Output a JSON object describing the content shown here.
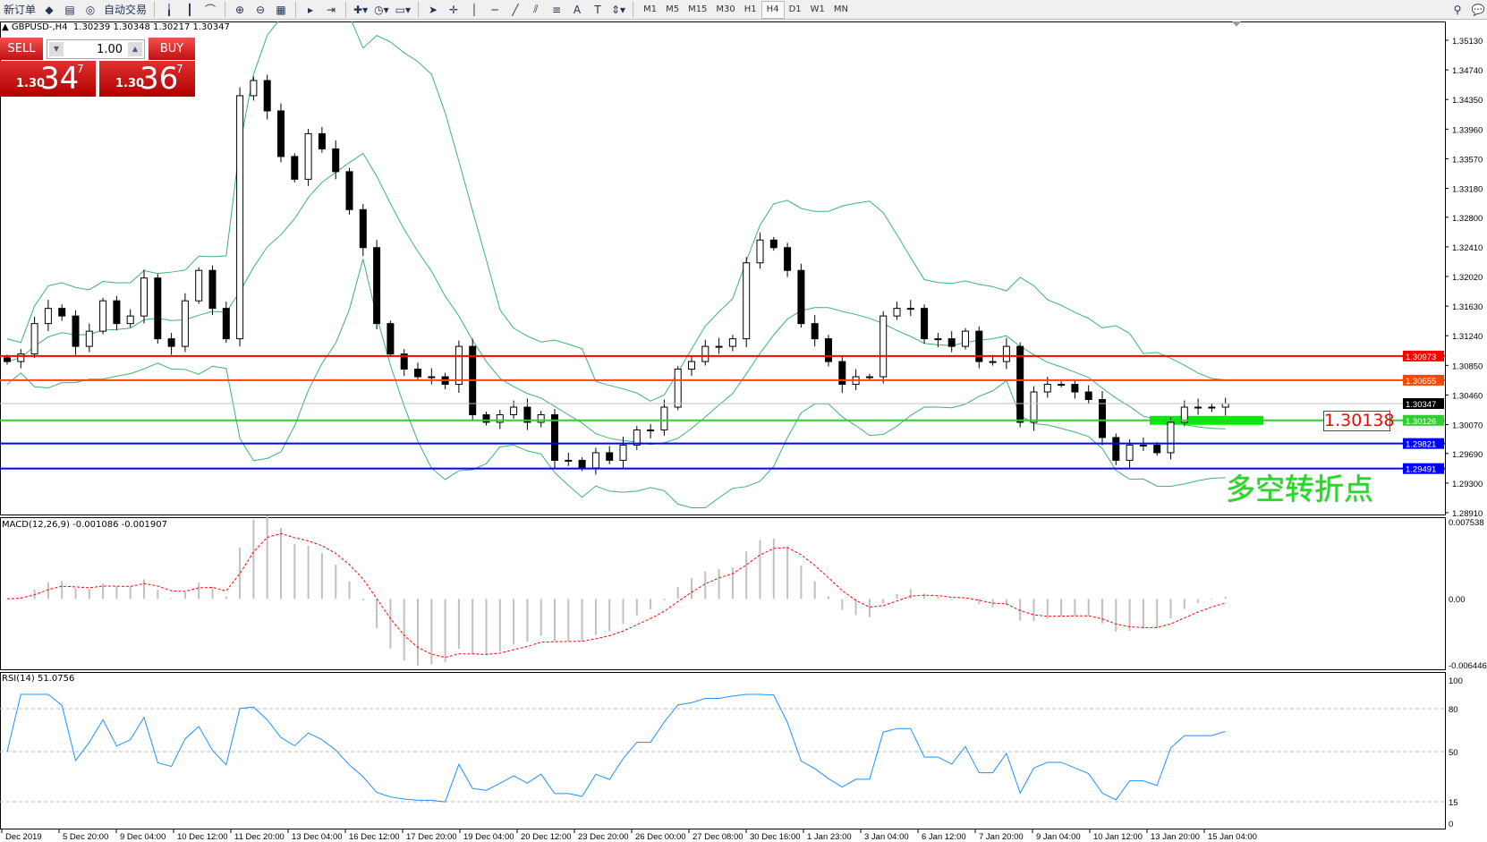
{
  "toolbar": {
    "new_order": "新订单",
    "auto_trade": "自动交易",
    "timeframes": [
      "M1",
      "M5",
      "M15",
      "M30",
      "H1",
      "H4",
      "D1",
      "W1",
      "MN"
    ],
    "selected_timeframe": "H4"
  },
  "header": {
    "symbol": "GBPUSD-,H4",
    "ohlc": "1.30239 1.30348 1.30217 1.30347"
  },
  "trade": {
    "sell_label": "SELL",
    "buy_label": "BUY",
    "lot": "1.00",
    "sell_small": "1.30",
    "sell_large": "34",
    "sell_pip": "7",
    "buy_small": "1.30",
    "buy_large": "36",
    "buy_pip": "7"
  },
  "annotation": {
    "price_label": "1.30138",
    "text": "多空转折点",
    "box_color": "#00ee00"
  },
  "indicators": {
    "macd_label": "MACD(12,26,9) -0.001086 -0.001907",
    "rsi_label": "RSI(14) 51.0756"
  },
  "chart_data": {
    "type": "candlestick",
    "price_axis": [
      "1.35130",
      "1.34740",
      "1.34350",
      "1.33960",
      "1.33570",
      "1.33180",
      "1.32800",
      "1.32410",
      "1.32020",
      "1.31630",
      "1.31240",
      "1.30850",
      "1.30460",
      "1.30070",
      "1.29690",
      "1.29300",
      "1.28910"
    ],
    "price_range": [
      1.2891,
      1.3513
    ],
    "time_axis": [
      "Dec 2019",
      "5 Dec 20:00",
      "9 Dec 04:00",
      "10 Dec 12:00",
      "11 Dec 20:00",
      "13 Dec 04:00",
      "16 Dec 12:00",
      "17 Dec 20:00",
      "19 Dec 04:00",
      "20 Dec 12:00",
      "23 Dec 20:00",
      "26 Dec 00:00",
      "27 Dec 08:00",
      "30 Dec 16:00",
      "1 Jan 23:00",
      "3 Jan 04:00",
      "6 Jan 12:00",
      "7 Jan 20:00",
      "9 Jan 04:00",
      "10 Jan 12:00",
      "13 Jan 20:00",
      "15 Jan 04:00"
    ],
    "closes": [
      1.309,
      1.31,
      1.314,
      1.316,
      1.315,
      1.311,
      1.313,
      1.317,
      1.314,
      1.315,
      1.32,
      1.312,
      1.311,
      1.317,
      1.321,
      1.316,
      1.312,
      1.344,
      1.346,
      1.342,
      1.336,
      1.333,
      1.339,
      1.337,
      1.334,
      1.329,
      1.324,
      1.314,
      1.31,
      1.308,
      1.307,
      1.307,
      1.306,
      1.311,
      1.302,
      1.301,
      1.302,
      1.303,
      1.301,
      1.302,
      1.296,
      1.296,
      1.295,
      1.297,
      1.296,
      1.298,
      1.3,
      1.3,
      1.303,
      1.308,
      1.309,
      1.311,
      1.311,
      1.312,
      1.322,
      1.325,
      1.324,
      1.321,
      1.314,
      1.312,
      1.309,
      1.306,
      1.307,
      1.307,
      1.315,
      1.316,
      1.316,
      1.312,
      1.312,
      1.311,
      1.313,
      1.309,
      1.309,
      1.311,
      1.301,
      1.305,
      1.306,
      1.306,
      1.305,
      1.304,
      1.299,
      1.296,
      1.298,
      1.298,
      1.297,
      1.301,
      1.303,
      1.303,
      1.303,
      1.30347
    ],
    "hlines": [
      {
        "price": "1.30973",
        "color": "#ff0000"
      },
      {
        "price": "1.30655",
        "color": "#ff4500"
      },
      {
        "price": "1.30347",
        "color": "#c0c0c0"
      },
      {
        "price": "1.30126",
        "color": "#32cd32"
      },
      {
        "price": "1.29821",
        "color": "#0000ff"
      },
      {
        "price": "1.29491",
        "color": "#0000ff"
      }
    ],
    "bands_color": "#3cb371",
    "macd": {
      "axis": [
        "0.007538",
        "0.00",
        "-0.006446"
      ],
      "histogram_color": "#c0c0c0",
      "signal_color": "#ff0000"
    },
    "rsi": {
      "axis": [
        "100",
        "80",
        "50",
        "15",
        "0"
      ],
      "color": "#1e90ff"
    }
  }
}
